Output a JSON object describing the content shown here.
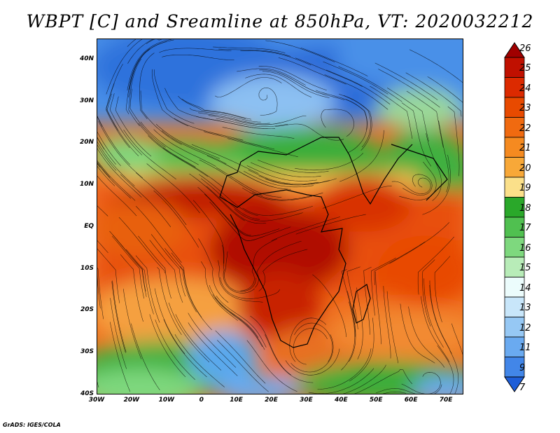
{
  "title": "WBPT [C] and Sreamline at 850hPa, VT: 2020032212",
  "footer": "GrADS: IGES/COLA",
  "map": {
    "lat_range": [
      -40,
      45
    ],
    "lon_range": [
      -30,
      75
    ],
    "lat_ticks": [
      "40N",
      "30N",
      "20N",
      "10N",
      "EQ",
      "10S",
      "20S",
      "30S",
      "40S"
    ],
    "lat_tick_values": [
      40,
      30,
      20,
      10,
      0,
      -10,
      -20,
      -30,
      -40
    ],
    "lon_ticks": [
      "30W",
      "20W",
      "10W",
      "0",
      "10E",
      "20E",
      "30E",
      "40E",
      "50E",
      "60E",
      "70E"
    ],
    "lon_tick_values": [
      -30,
      -20,
      -10,
      0,
      10,
      20,
      30,
      40,
      50,
      60,
      70
    ]
  },
  "colorbar": {
    "labels": [
      "26",
      "25",
      "24",
      "23",
      "22",
      "21",
      "20",
      "19",
      "18",
      "17",
      "16",
      "15",
      "14",
      "13",
      "12",
      "11",
      "9",
      "7"
    ],
    "colors": [
      "#a00000",
      "#c01000",
      "#dc2a00",
      "#e84a00",
      "#f06a10",
      "#f58a20",
      "#f8a838",
      "#fbe08a",
      "#2aa82a",
      "#50c050",
      "#7ed87e",
      "#b8ecb8",
      "#ecfcfc",
      "#c8e6fa",
      "#96c8f4",
      "#6aaaf0",
      "#4286e8",
      "#1e5ed8"
    ]
  }
}
